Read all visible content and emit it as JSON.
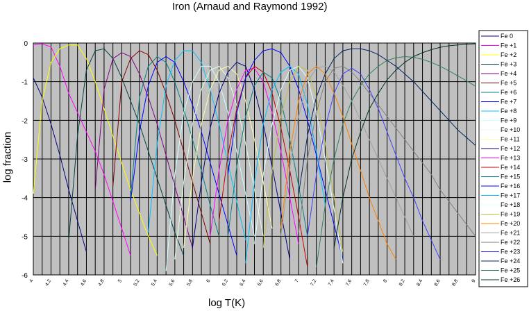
{
  "chart_data": {
    "type": "line",
    "title": "Iron  (Arnaud and Raymond 1992)",
    "xlabel": "log T(K)",
    "ylabel": "log fraction",
    "xlim": [
      4.0,
      9.0
    ],
    "ylim": [
      -6,
      0
    ],
    "grid": true,
    "legend_position": "right",
    "x_ticks": [
      "4",
      "4.2",
      "4.4",
      "4.6",
      "4.8",
      "5",
      "5.2",
      "5.4",
      "5.6",
      "5.8",
      "6",
      "6.2",
      "6.4",
      "6.6",
      "6.8",
      "7",
      "7.2",
      "7.4",
      "7.6",
      "7.8",
      "8",
      "8.2",
      "8.4",
      "8.6",
      "8.8",
      "9"
    ],
    "y_ticks": [
      "0",
      "-1",
      "-2",
      "-3",
      "-4",
      "-5",
      "-6"
    ],
    "series": [
      {
        "name": "Fe  0",
        "color": "#000080",
        "x": [
          4.0,
          4.1,
          4.2,
          4.3,
          4.4,
          4.5,
          4.6
        ],
        "y": [
          -0.9,
          -1.4,
          -2.1,
          -2.9,
          -3.8,
          -4.6,
          -5.4
        ]
      },
      {
        "name": "Fe +1",
        "color": "#ff00ff",
        "x": [
          4.0,
          4.1,
          4.2,
          4.3,
          4.4,
          4.5,
          4.6,
          4.7,
          4.8,
          4.9,
          5.0,
          5.1
        ],
        "y": [
          -0.05,
          -0.02,
          -0.1,
          -0.6,
          -1.3,
          -1.8,
          -2.3,
          -2.8,
          -3.4,
          -4.1,
          -4.8,
          -5.5
        ]
      },
      {
        "name": "Fe +2",
        "color": "#ffff00",
        "x": [
          4.0,
          4.1,
          4.2,
          4.3,
          4.4,
          4.5,
          4.6,
          4.7,
          4.8,
          4.9,
          5.0,
          5.1,
          5.2,
          5.3,
          5.4
        ],
        "y": [
          -3.9,
          -1.5,
          -0.5,
          -0.15,
          -0.05,
          -0.05,
          -0.4,
          -1.0,
          -1.7,
          -2.4,
          -3.1,
          -3.8,
          -4.4,
          -5.0,
          -5.5
        ]
      },
      {
        "name": "Fe +3",
        "color": "#004040",
        "x": [
          4.4,
          4.5,
          4.6,
          4.7,
          4.8,
          4.9,
          5.0,
          5.1,
          5.2,
          5.3,
          5.4,
          5.5,
          5.6,
          5.7
        ],
        "y": [
          -5.1,
          -2.4,
          -0.7,
          -0.2,
          -0.15,
          -0.4,
          -0.9,
          -1.5,
          -2.1,
          -2.8,
          -3.5,
          -4.2,
          -4.9,
          -5.5
        ]
      },
      {
        "name": "Fe +4",
        "color": "#800080",
        "x": [
          4.7,
          4.8,
          4.9,
          5.0,
          5.1,
          5.2,
          5.3,
          5.4,
          5.5,
          5.6,
          5.7,
          5.8
        ],
        "y": [
          -3.8,
          -1.2,
          -0.4,
          -0.25,
          -0.35,
          -0.8,
          -1.4,
          -2.1,
          -2.9,
          -3.7,
          -4.5,
          -5.3
        ]
      },
      {
        "name": "Fe +5",
        "color": "#800000",
        "x": [
          4.9,
          5.0,
          5.1,
          5.2,
          5.3,
          5.4,
          5.5,
          5.6,
          5.7,
          5.8,
          5.9,
          6.0
        ],
        "y": [
          -3.7,
          -1.0,
          -0.4,
          -0.2,
          -0.3,
          -0.7,
          -1.3,
          -2.0,
          -2.8,
          -3.6,
          -4.4,
          -5.2
        ]
      },
      {
        "name": "Fe +6",
        "color": "#008080",
        "x": [
          5.1,
          5.2,
          5.3,
          5.4,
          5.5,
          5.6,
          5.7,
          5.8,
          5.9,
          6.0,
          6.1
        ],
        "y": [
          -4.0,
          -1.4,
          -0.6,
          -0.35,
          -0.5,
          -1.0,
          -1.7,
          -2.5,
          -3.3,
          -4.2,
          -5.0
        ]
      },
      {
        "name": "Fe +7",
        "color": "#0000ff",
        "x": [
          5.1,
          5.2,
          5.3,
          5.4,
          5.5,
          5.6,
          5.7,
          5.8,
          5.9,
          6.0,
          6.1,
          6.2,
          6.3
        ],
        "y": [
          -4.1,
          -2.3,
          -1.1,
          -0.5,
          -0.35,
          -0.5,
          -1.0,
          -1.6,
          -2.3,
          -3.1,
          -3.9,
          -4.7,
          -5.5
        ]
      },
      {
        "name": "Fe +8",
        "color": "#00c0ff",
        "x": [
          5.3,
          5.4,
          5.5,
          5.6,
          5.7,
          5.8,
          5.9,
          6.0,
          6.1,
          6.2,
          6.3,
          6.4
        ],
        "y": [
          -4.9,
          -2.6,
          -1.1,
          -0.45,
          -0.2,
          -0.2,
          -0.5,
          -1.2,
          -2.1,
          -3.1,
          -4.1,
          -5.1
        ]
      },
      {
        "name": "Fe +9",
        "color": "#ccffff",
        "x": [
          5.5,
          5.6,
          5.7,
          5.8,
          5.9,
          6.0,
          6.1,
          6.2,
          6.3,
          6.4,
          6.5
        ],
        "y": [
          -5.9,
          -3.4,
          -1.8,
          -1.0,
          -0.6,
          -0.6,
          -1.0,
          -1.8,
          -2.8,
          -3.9,
          -5.0
        ]
      },
      {
        "name": "Fe +10",
        "color": "#e0ffe0",
        "x": [
          5.6,
          5.7,
          5.8,
          5.9,
          6.0,
          6.1,
          6.2,
          6.3,
          6.4,
          6.5,
          6.6
        ],
        "y": [
          -5.6,
          -3.6,
          -2.1,
          -1.2,
          -0.7,
          -0.6,
          -0.9,
          -1.6,
          -2.6,
          -3.8,
          -5.0
        ]
      },
      {
        "name": "Fe +11",
        "color": "#ffffa0",
        "x": [
          5.7,
          5.8,
          5.9,
          6.0,
          6.1,
          6.2,
          6.3,
          6.4,
          6.5,
          6.6,
          6.7
        ],
        "y": [
          -5.3,
          -3.5,
          -2.1,
          -1.2,
          -0.7,
          -0.6,
          -0.8,
          -1.5,
          -2.5,
          -3.6,
          -4.8
        ]
      },
      {
        "name": "Fe +12",
        "color": "#000080",
        "x": [
          5.8,
          5.9,
          6.0,
          6.1,
          6.2,
          6.3,
          6.4,
          6.5,
          6.6,
          6.7,
          6.8,
          6.9
        ],
        "y": [
          -5.3,
          -3.6,
          -2.2,
          -1.3,
          -0.75,
          -0.5,
          -0.6,
          -1.2,
          -2.1,
          -3.2,
          -4.4,
          -5.6
        ]
      },
      {
        "name": "Fe +13",
        "color": "#ff00ff",
        "x": [
          6.0,
          6.1,
          6.2,
          6.3,
          6.4,
          6.5,
          6.6,
          6.7,
          6.8,
          6.9,
          7.0
        ],
        "y": [
          -5.0,
          -3.3,
          -2.0,
          -1.2,
          -0.7,
          -0.65,
          -1.0,
          -1.8,
          -2.8,
          -4.0,
          -5.2
        ]
      },
      {
        "name": "Fe +14",
        "color": "#c00000",
        "x": [
          6.1,
          6.2,
          6.3,
          6.4,
          6.5,
          6.6,
          6.7,
          6.8,
          6.9,
          7.0,
          7.1
        ],
        "y": [
          -4.6,
          -2.9,
          -1.7,
          -0.9,
          -0.6,
          -0.75,
          -1.3,
          -2.2,
          -3.3,
          -4.5,
          -5.8
        ]
      },
      {
        "name": "Fe +15",
        "color": "#008080",
        "x": [
          6.2,
          6.3,
          6.4,
          6.5,
          6.6,
          6.7,
          6.8,
          6.9,
          7.0,
          7.1
        ],
        "y": [
          -5.0,
          -3.2,
          -1.9,
          -1.1,
          -0.75,
          -0.9,
          -1.5,
          -2.5,
          -3.7,
          -5.0
        ]
      },
      {
        "name": "Fe +16",
        "color": "#0000ff",
        "x": [
          6.2,
          6.3,
          6.4,
          6.5,
          6.6,
          6.7,
          6.8,
          6.9,
          7.0,
          7.1,
          7.2,
          7.3,
          7.4,
          7.5
        ],
        "y": [
          -3.4,
          -1.8,
          -0.9,
          -0.45,
          -0.2,
          -0.15,
          -0.25,
          -0.6,
          -1.2,
          -2.0,
          -2.9,
          -3.8,
          -4.7,
          -5.6
        ]
      },
      {
        "name": "Fe +17",
        "color": "#00c0ff",
        "x": [
          6.4,
          6.5,
          6.6,
          6.7,
          6.8,
          6.9,
          7.0,
          7.1,
          7.2,
          7.3
        ],
        "y": [
          -5.7,
          -3.6,
          -2.1,
          -1.2,
          -0.75,
          -0.6,
          -0.8,
          -1.6,
          -2.8,
          -4.2
        ]
      },
      {
        "name": "Fe +18",
        "color": "#e0ffff",
        "x": [
          6.5,
          6.6,
          6.7,
          6.8,
          6.9,
          7.0,
          7.1,
          7.2,
          7.3,
          7.4,
          7.5
        ],
        "y": [
          -5.2,
          -3.4,
          -2.1,
          -1.2,
          -0.7,
          -0.6,
          -0.9,
          -1.8,
          -3.0,
          -4.3,
          -5.7
        ]
      },
      {
        "name": "Fe +19",
        "color": "#c0c040",
        "x": [
          6.6,
          6.7,
          6.8,
          6.9,
          7.0,
          7.1,
          7.2,
          7.3,
          7.4,
          7.5
        ],
        "y": [
          -5.3,
          -3.3,
          -1.9,
          -1.0,
          -0.6,
          -0.7,
          -1.4,
          -2.6,
          -4.0,
          -5.4
        ]
      },
      {
        "name": "Fe +20",
        "color": "#ff8000",
        "x": [
          6.8,
          6.9,
          7.0,
          7.1,
          7.2,
          7.3,
          7.4,
          7.5,
          7.6,
          7.7,
          7.8,
          7.9,
          8.0,
          8.1
        ],
        "y": [
          -4.8,
          -2.8,
          -1.5,
          -0.8,
          -0.6,
          -0.8,
          -1.3,
          -1.9,
          -2.6,
          -3.3,
          -4.0,
          -4.6,
          -5.2,
          -5.6
        ]
      },
      {
        "name": "Fe +21",
        "color": "#a0a0a0",
        "x": [
          6.8,
          6.9,
          7.0,
          7.1,
          7.2,
          7.3,
          7.4,
          7.5,
          7.6,
          7.7,
          7.8,
          7.9,
          8.0,
          8.1,
          8.2,
          8.3
        ],
        "y": [
          -5.0,
          -3.2,
          -1.9,
          -1.0,
          -0.65,
          -0.6,
          -0.75,
          -1.1,
          -1.5,
          -2.0,
          -2.5,
          -3.0,
          -3.5,
          -4.0,
          -4.5,
          -5.0
        ]
      },
      {
        "name": "Fe +22",
        "color": "#808080",
        "x": [
          7.0,
          7.1,
          7.2,
          7.3,
          7.4,
          7.5,
          7.6,
          7.7,
          7.8,
          7.9,
          8.0,
          8.1,
          8.2,
          8.3,
          8.4,
          8.5,
          8.6,
          8.7,
          8.8,
          8.9,
          9.0
        ],
        "y": [
          -4.9,
          -3.0,
          -1.8,
          -1.0,
          -0.65,
          -0.6,
          -0.75,
          -1.0,
          -1.3,
          -1.6,
          -1.9,
          -2.2,
          -2.5,
          -2.8,
          -3.1,
          -3.4,
          -3.8,
          -4.1,
          -4.4,
          -4.7,
          -5.0
        ]
      },
      {
        "name": "Fe +23",
        "color": "#4040ff",
        "x": [
          7.1,
          7.2,
          7.3,
          7.4,
          7.5,
          7.6,
          7.7,
          7.8,
          7.9,
          8.0,
          8.1,
          8.2,
          8.3,
          8.4,
          8.5,
          8.6
        ],
        "y": [
          -5.0,
          -3.4,
          -2.2,
          -1.3,
          -0.8,
          -0.65,
          -0.8,
          -1.2,
          -1.7,
          -2.3,
          -2.9,
          -3.5,
          -4.0,
          -4.6,
          -5.1,
          -5.6
        ]
      },
      {
        "name": "Fe +24",
        "color": "#002060",
        "x": [
          7.0,
          7.1,
          7.2,
          7.3,
          7.4,
          7.5,
          7.6,
          7.7,
          7.8,
          7.9,
          8.0,
          8.1,
          8.2,
          8.3,
          8.4,
          8.5,
          8.6,
          8.7,
          8.8,
          8.9,
          9.0
        ],
        "y": [
          -3.9,
          -2.4,
          -1.4,
          -0.8,
          -0.4,
          -0.2,
          -0.15,
          -0.15,
          -0.2,
          -0.3,
          -0.45,
          -0.6,
          -0.8,
          -1.0,
          -1.25,
          -1.5,
          -1.75,
          -2.0,
          -2.25,
          -2.45,
          -2.65
        ]
      },
      {
        "name": "Fe +25",
        "color": "#308060",
        "x": [
          7.2,
          7.3,
          7.4,
          7.5,
          7.6,
          7.7,
          7.8,
          7.9,
          8.0,
          8.1,
          8.2,
          8.3,
          8.4,
          8.5,
          8.6,
          8.7,
          8.8,
          8.9,
          9.0
        ],
        "y": [
          -5.8,
          -4.2,
          -3.0,
          -2.1,
          -1.5,
          -1.1,
          -0.8,
          -0.6,
          -0.45,
          -0.38,
          -0.35,
          -0.37,
          -0.42,
          -0.5,
          -0.6,
          -0.72,
          -0.85,
          -0.98,
          -1.12
        ]
      },
      {
        "name": "Fe +26",
        "color": "#003020",
        "x": [
          7.4,
          7.5,
          7.6,
          7.7,
          7.8,
          7.9,
          8.0,
          8.1,
          8.2,
          8.3,
          8.4,
          8.5,
          8.6,
          8.7,
          8.8,
          8.9,
          9.0
        ],
        "y": [
          -5.3,
          -4.0,
          -3.0,
          -2.3,
          -1.7,
          -1.3,
          -0.95,
          -0.7,
          -0.5,
          -0.35,
          -0.25,
          -0.17,
          -0.11,
          -0.07,
          -0.05,
          -0.03,
          -0.02
        ]
      }
    ]
  }
}
